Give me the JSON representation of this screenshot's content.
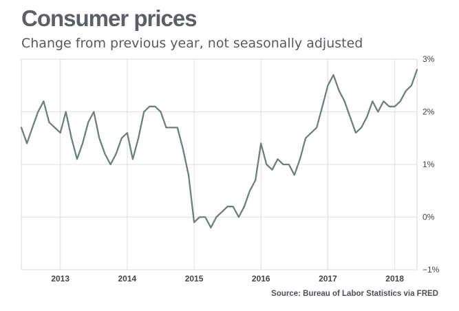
{
  "chart_data": {
    "type": "line",
    "title": "Consumer prices",
    "subtitle": "Change from previous year, not seasonally adjusted",
    "source": "Source: Bureau of Labor Statistics via FRED",
    "xlabel": "",
    "ylabel": "",
    "y_unit": "%",
    "ylim": [
      -1,
      3
    ],
    "y_ticks": [
      3,
      2,
      1,
      0,
      -1
    ],
    "y_tick_labels": [
      "3%",
      "2%",
      "1%",
      "0%",
      "−1%"
    ],
    "x_ticks": [
      2013,
      2014,
      2015,
      2016,
      2017,
      2018
    ],
    "x_tick_labels": [
      "2013",
      "2014",
      "2015",
      "2016",
      "2017",
      "2018"
    ],
    "xlim": [
      2012.417,
      2018.333
    ],
    "grid": true,
    "line_color": "#6b807c",
    "series": [
      {
        "name": "CPI change from previous year",
        "x": [
          2012.417,
          2012.5,
          2012.583,
          2012.667,
          2012.75,
          2012.833,
          2012.917,
          2013.0,
          2013.083,
          2013.167,
          2013.25,
          2013.333,
          2013.417,
          2013.5,
          2013.583,
          2013.667,
          2013.75,
          2013.833,
          2013.917,
          2014.0,
          2014.083,
          2014.167,
          2014.25,
          2014.333,
          2014.417,
          2014.5,
          2014.583,
          2014.667,
          2014.75,
          2014.833,
          2014.917,
          2015.0,
          2015.083,
          2015.167,
          2015.25,
          2015.333,
          2015.417,
          2015.5,
          2015.583,
          2015.667,
          2015.75,
          2015.833,
          2015.917,
          2016.0,
          2016.083,
          2016.167,
          2016.25,
          2016.333,
          2016.417,
          2016.5,
          2016.583,
          2016.667,
          2016.75,
          2016.833,
          2016.917,
          2017.0,
          2017.083,
          2017.167,
          2017.25,
          2017.333,
          2017.417,
          2017.5,
          2017.583,
          2017.667,
          2017.75,
          2017.833,
          2017.917,
          2018.0,
          2018.083,
          2018.167,
          2018.25,
          2018.333
        ],
        "values": [
          1.7,
          1.4,
          1.7,
          2.0,
          2.2,
          1.8,
          1.7,
          1.6,
          2.0,
          1.5,
          1.1,
          1.4,
          1.8,
          2.0,
          1.5,
          1.2,
          1.0,
          1.2,
          1.5,
          1.6,
          1.1,
          1.5,
          2.0,
          2.1,
          2.1,
          2.0,
          1.7,
          1.7,
          1.7,
          1.3,
          0.8,
          -0.1,
          0.0,
          0.0,
          -0.2,
          0.0,
          0.1,
          0.2,
          0.2,
          0.0,
          0.2,
          0.5,
          0.7,
          1.4,
          1.0,
          0.9,
          1.1,
          1.0,
          1.0,
          0.8,
          1.1,
          1.5,
          1.6,
          1.7,
          2.1,
          2.5,
          2.7,
          2.4,
          2.2,
          1.9,
          1.6,
          1.7,
          1.9,
          2.2,
          2.0,
          2.2,
          2.1,
          2.1,
          2.2,
          2.4,
          2.5,
          2.8
        ]
      }
    ]
  }
}
